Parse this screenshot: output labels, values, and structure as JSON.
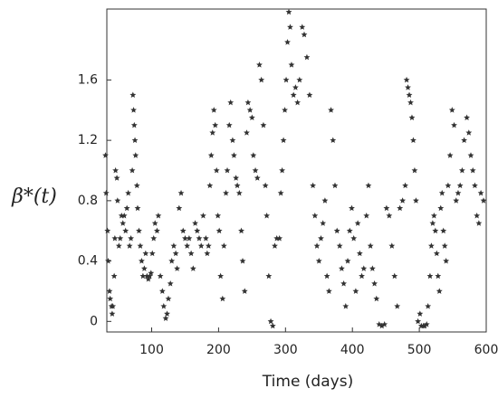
{
  "chart_data": {
    "type": "scatter",
    "x_label": "Time (days)",
    "y_label": "β*(t)",
    "xlim": [
      33,
      600
    ],
    "ylim": [
      -0.07,
      2.07
    ],
    "xticks": [
      100,
      200,
      300,
      400,
      500,
      600
    ],
    "yticks": [
      0,
      0.4,
      0.8,
      1.2,
      1.6
    ],
    "color": "#333333",
    "x": [
      31,
      32,
      34,
      35,
      37,
      38,
      40,
      41,
      42,
      44,
      45,
      46,
      48,
      49,
      51,
      53,
      55,
      57,
      59,
      61,
      63,
      65,
      67,
      69,
      71,
      72,
      73,
      74,
      75,
      76,
      78,
      79,
      81,
      83,
      85,
      87,
      89,
      91,
      93,
      95,
      97,
      99,
      101,
      103,
      105,
      108,
      110,
      113,
      116,
      118,
      121,
      123,
      125,
      128,
      130,
      133,
      136,
      138,
      141,
      144,
      147,
      150,
      153,
      156,
      159,
      162,
      165,
      168,
      171,
      174,
      177,
      181,
      183,
      185,
      187,
      189,
      191,
      193,
      195,
      197,
      199,
      201,
      203,
      206,
      208,
      211,
      213,
      216,
      218,
      221,
      223,
      226,
      228,
      231,
      234,
      236,
      239,
      242,
      244,
      247,
      250,
      252,
      255,
      258,
      261,
      264,
      267,
      270,
      272,
      275,
      278,
      281,
      284,
      287,
      291,
      293,
      295,
      297,
      299,
      301,
      303,
      305,
      307,
      309,
      312,
      315,
      318,
      321,
      325,
      328,
      332,
      336,
      341,
      344,
      347,
      350,
      353,
      356,
      359,
      362,
      365,
      368,
      371,
      374,
      377,
      381,
      384,
      387,
      390,
      393,
      396,
      399,
      402,
      405,
      408,
      411,
      414,
      417,
      421,
      424,
      427,
      430,
      433,
      436,
      440,
      444,
      448,
      451,
      455,
      459,
      463,
      467,
      471,
      475,
      479,
      481,
      483,
      485,
      487,
      489,
      491,
      493,
      495,
      498,
      501,
      503,
      506,
      508,
      511,
      513,
      516,
      518,
      520,
      522,
      524,
      526,
      528,
      530,
      532,
      534,
      536,
      538,
      540,
      543,
      546,
      549,
      552,
      555,
      558,
      561,
      564,
      567,
      571,
      574,
      577,
      580,
      583,
      586,
      589,
      592,
      596
    ],
    "y": [
      1.1,
      0.85,
      0.6,
      0.4,
      0.2,
      0.15,
      0.1,
      0.05,
      0.1,
      0.3,
      0.55,
      1.0,
      0.95,
      0.8,
      0.5,
      0.55,
      0.7,
      0.65,
      0.7,
      0.6,
      0.75,
      0.85,
      0.5,
      0.55,
      1.0,
      1.5,
      1.4,
      1.3,
      1.2,
      1.1,
      0.9,
      0.75,
      0.6,
      0.5,
      0.4,
      0.3,
      0.35,
      0.45,
      0.3,
      0.28,
      0.3,
      0.32,
      0.45,
      0.55,
      0.65,
      0.6,
      0.7,
      0.3,
      0.2,
      0.1,
      0.02,
      0.05,
      0.15,
      0.25,
      0.4,
      0.5,
      0.45,
      0.35,
      0.75,
      0.85,
      0.6,
      0.55,
      0.5,
      0.55,
      0.45,
      0.35,
      0.65,
      0.6,
      0.55,
      0.5,
      0.7,
      0.55,
      0.45,
      0.5,
      0.9,
      1.1,
      1.25,
      1.4,
      1.3,
      1.0,
      0.7,
      0.6,
      0.3,
      0.15,
      0.5,
      0.85,
      1.0,
      1.3,
      1.45,
      1.2,
      1.1,
      0.95,
      0.9,
      0.85,
      0.6,
      0.4,
      0.2,
      1.25,
      1.45,
      1.4,
      1.35,
      1.1,
      1.0,
      0.95,
      1.7,
      1.6,
      1.3,
      0.9,
      0.7,
      0.3,
      0.0,
      -0.03,
      0.5,
      0.55,
      0.55,
      0.85,
      1.0,
      1.2,
      1.4,
      1.6,
      1.85,
      2.05,
      1.95,
      1.7,
      1.5,
      1.55,
      1.45,
      1.6,
      1.95,
      1.9,
      1.75,
      1.5,
      0.9,
      0.7,
      0.5,
      0.4,
      0.55,
      0.65,
      0.8,
      0.3,
      0.2,
      1.4,
      1.2,
      0.9,
      0.6,
      0.5,
      0.35,
      0.25,
      0.1,
      0.4,
      0.6,
      0.75,
      0.55,
      0.2,
      0.65,
      0.45,
      0.3,
      0.35,
      0.7,
      0.9,
      0.5,
      0.35,
      0.25,
      0.15,
      -0.02,
      -0.03,
      -0.02,
      0.75,
      0.7,
      0.5,
      0.3,
      0.1,
      0.75,
      0.8,
      0.9,
      1.6,
      1.55,
      1.5,
      1.45,
      1.35,
      1.2,
      1.0,
      0.8,
      0.0,
      0.05,
      -0.03,
      -0.03,
      -0.03,
      -0.02,
      0.1,
      0.3,
      0.5,
      0.65,
      0.7,
      0.6,
      0.45,
      0.3,
      0.2,
      0.75,
      0.85,
      0.6,
      0.5,
      0.4,
      0.9,
      1.1,
      1.4,
      1.3,
      0.8,
      0.85,
      0.9,
      1.0,
      1.2,
      1.35,
      1.25,
      1.1,
      1.0,
      0.9,
      0.7,
      0.65,
      0.85,
      0.8
    ]
  }
}
